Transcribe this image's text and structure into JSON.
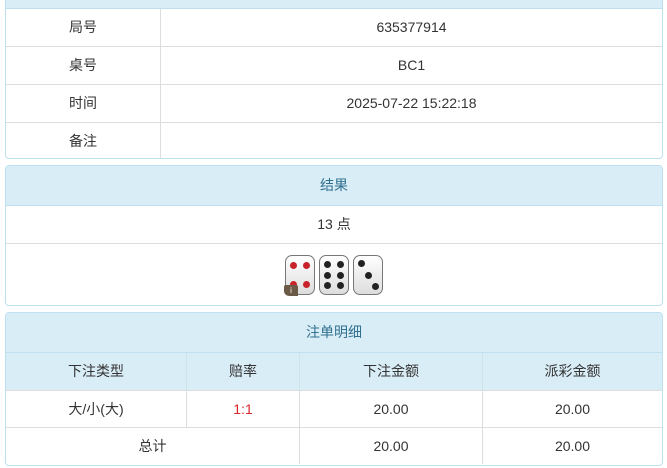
{
  "info": [
    {
      "label": "局号",
      "value": "635377914"
    },
    {
      "label": "桌号",
      "value": "BC1"
    },
    {
      "label": "时间",
      "value": "2025-07-22 15:22:18"
    },
    {
      "label": "备注",
      "value": ""
    }
  ],
  "result": {
    "title": "结果",
    "points": "13 点",
    "dice": [
      4,
      6,
      3
    ],
    "badge": "i"
  },
  "bets": {
    "title": "注单明细",
    "headers": [
      "下注类型",
      "赔率",
      "下注金额",
      "派彩金额"
    ],
    "rows": [
      {
        "type": "大/小(大)",
        "odds": "1:1",
        "amount": "20.00",
        "payout": "20.00"
      }
    ],
    "total": {
      "label": "总计",
      "amount": "20.00",
      "payout": "20.00"
    }
  },
  "colors": {
    "header_bg": "#d9edf7",
    "header_text": "#31708f",
    "odds": "#d9262a"
  }
}
